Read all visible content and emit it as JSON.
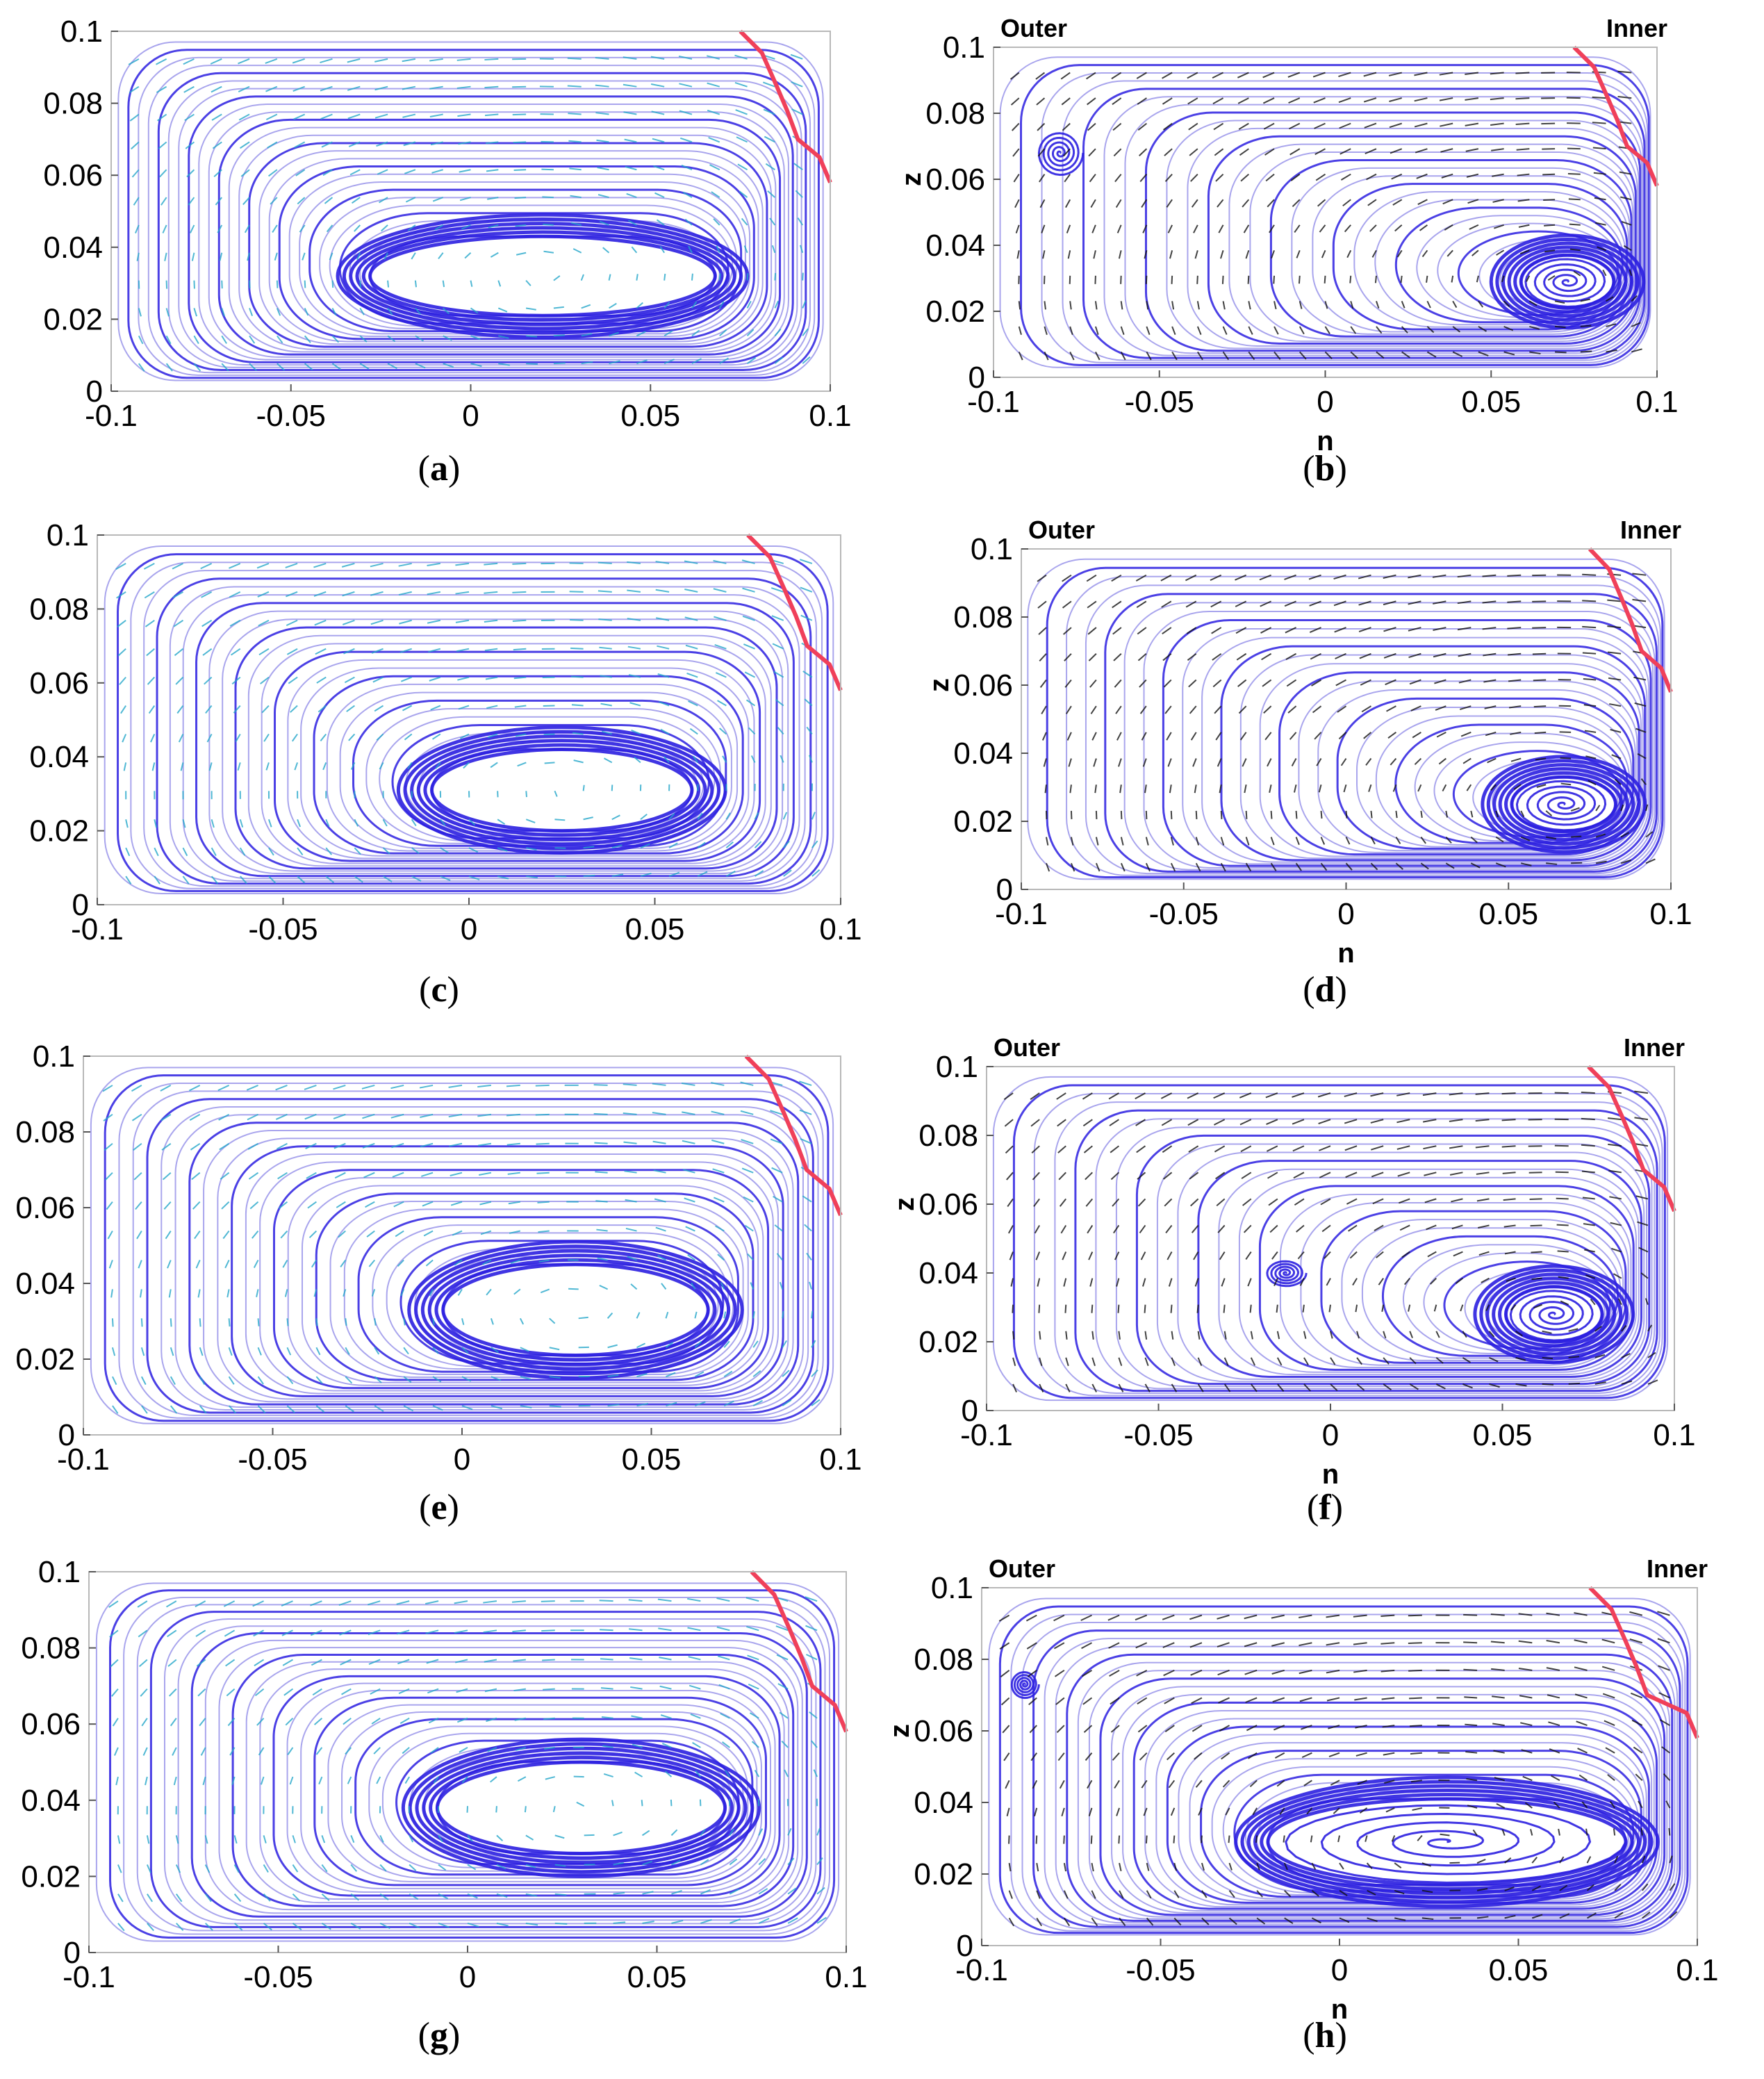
{
  "colors": {
    "streamline": "#2b1fe0",
    "streamline_light": "#9a95ea",
    "vector_cyan": "#24a6c9",
    "vector_black": "#111111",
    "boundary_red": "#f0405a"
  },
  "panels": [
    {
      "id": "a",
      "caption": "a",
      "style": "cyan",
      "x_ticks": [
        "-0.1",
        "-0.05",
        "0",
        "0.05",
        "0.1"
      ],
      "y_ticks": [
        "0",
        "0.02",
        "0.04",
        "0.06",
        "0.08",
        "0.1"
      ],
      "xlabel": "",
      "ylabel": "",
      "left_label": "",
      "right_label": "",
      "vortices": [
        {
          "cx": 0.02,
          "cz": 0.032,
          "rx": 0.048,
          "rz": 0.011
        }
      ]
    },
    {
      "id": "b",
      "caption": "b",
      "style": "black",
      "x_ticks": [
        "-0.1",
        "-0.05",
        "0",
        "0.05",
        "0.1"
      ],
      "y_ticks": [
        "0",
        "0.02",
        "0.04",
        "0.06",
        "0.08",
        "0.1"
      ],
      "xlabel": "n",
      "ylabel": "z",
      "left_label": "Outer",
      "right_label": "Inner",
      "vortices": [
        {
          "cx": 0.073,
          "cz": 0.029,
          "rx": 0.014,
          "rz": 0.008
        },
        {
          "cx": -0.08,
          "cz": 0.068,
          "rx": 0.007,
          "rz": 0.007
        }
      ]
    },
    {
      "id": "c",
      "caption": "c",
      "style": "cyan",
      "x_ticks": [
        "-0.1",
        "-0.05",
        "0",
        "0.05",
        "0.1"
      ],
      "y_ticks": [
        "0",
        "0.02",
        "0.04",
        "0.06",
        "0.08",
        "0.1"
      ],
      "xlabel": "",
      "ylabel": "",
      "left_label": "",
      "right_label": "",
      "vortices": [
        {
          "cx": 0.025,
          "cz": 0.031,
          "rx": 0.035,
          "rz": 0.011
        }
      ]
    },
    {
      "id": "d",
      "caption": "d",
      "style": "black",
      "x_ticks": [
        "-0.1",
        "-0.05",
        "0",
        "0.05",
        "0.1"
      ],
      "y_ticks": [
        "0",
        "0.02",
        "0.04",
        "0.06",
        "0.08",
        "0.1"
      ],
      "xlabel": "n",
      "ylabel": "z",
      "left_label": "Outer",
      "right_label": "Inner",
      "vortices": [
        {
          "cx": 0.067,
          "cz": 0.025,
          "rx": 0.016,
          "rz": 0.008
        }
      ]
    },
    {
      "id": "e",
      "caption": "e",
      "style": "cyan",
      "x_ticks": [
        "-0.1",
        "-0.05",
        "0",
        "0.05",
        "0.1"
      ],
      "y_ticks": [
        "0",
        "0.02",
        "0.04",
        "0.06",
        "0.08",
        "0.1"
      ],
      "xlabel": "",
      "ylabel": "",
      "left_label": "",
      "right_label": "",
      "vortices": [
        {
          "cx": 0.03,
          "cz": 0.033,
          "rx": 0.035,
          "rz": 0.012
        }
      ]
    },
    {
      "id": "f",
      "caption": "f",
      "style": "black",
      "x_ticks": [
        "-0.1",
        "-0.05",
        "0",
        "0.05",
        "0.1"
      ],
      "y_ticks": [
        "0",
        "0.02",
        "0.04",
        "0.06",
        "0.08",
        "0.1"
      ],
      "xlabel": "n",
      "ylabel": "z",
      "left_label": "Outer",
      "right_label": "Inner",
      "vortices": [
        {
          "cx": 0.065,
          "cz": 0.028,
          "rx": 0.014,
          "rz": 0.008
        },
        {
          "cx": -0.013,
          "cz": 0.04,
          "rx": 0.006,
          "rz": 0.004
        }
      ]
    },
    {
      "id": "g",
      "caption": "g",
      "style": "cyan",
      "x_ticks": [
        "-0.1",
        "-0.05",
        "0",
        "0.05",
        "0.1"
      ],
      "y_ticks": [
        "0",
        "0.02",
        "0.04",
        "0.06",
        "0.08",
        "0.1"
      ],
      "xlabel": "",
      "ylabel": "",
      "left_label": "",
      "right_label": "",
      "vortices": [
        {
          "cx": 0.03,
          "cz": 0.038,
          "rx": 0.038,
          "rz": 0.012
        }
      ]
    },
    {
      "id": "h",
      "caption": "h",
      "style": "black",
      "x_ticks": [
        "-0.1",
        "-0.05",
        "0",
        "0.05",
        "0.1"
      ],
      "y_ticks": [
        "0",
        "0.02",
        "0.04",
        "0.06",
        "0.08",
        "0.1"
      ],
      "xlabel": "n",
      "ylabel": "z",
      "left_label": "Outer",
      "right_label": "Inner",
      "vortices": [
        {
          "cx": 0.03,
          "cz": 0.029,
          "rx": 0.05,
          "rz": 0.012
        },
        {
          "cx": -0.088,
          "cz": 0.073,
          "rx": 0.004,
          "rz": 0.004
        }
      ]
    }
  ]
}
